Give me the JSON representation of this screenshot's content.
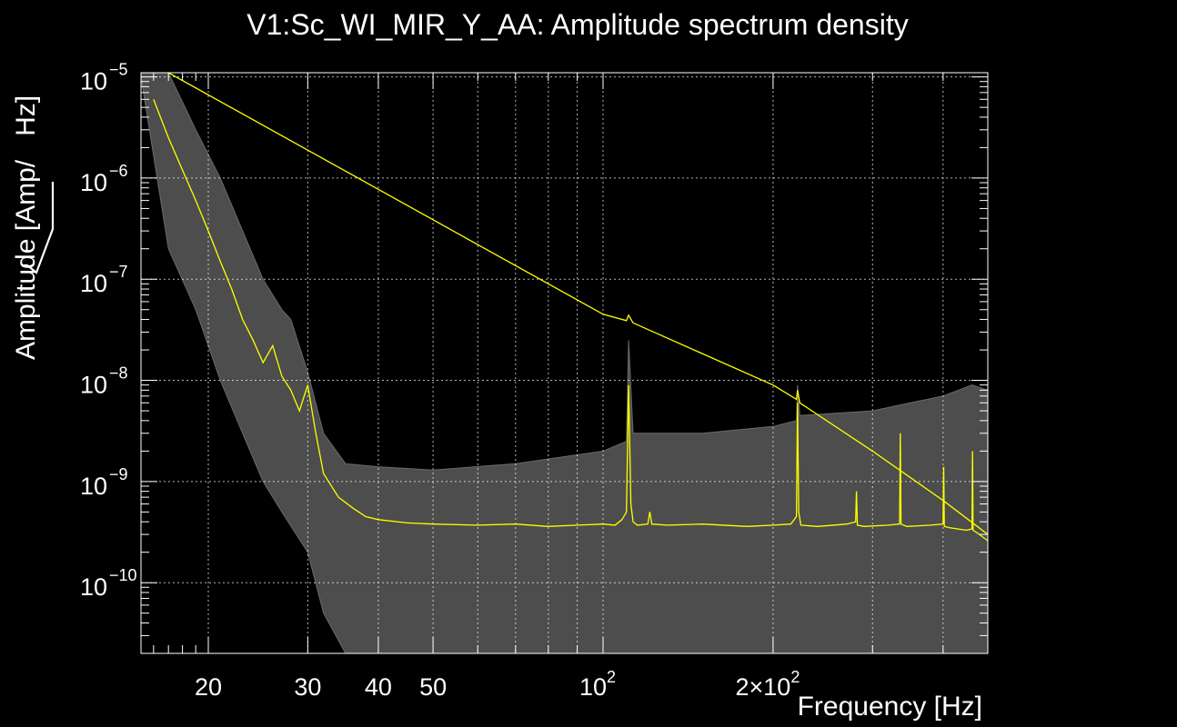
{
  "chart_data": {
    "type": "line",
    "title": "V1:Sc_WI_MIR_Y_AA: Amplitude spectrum density",
    "xlabel": "Frequency [Hz]",
    "ylabel_prefix": "Amplitude [Amp/",
    "ylabel_radicand": "Hz",
    "ylabel_suffix": "]",
    "xscale": "log",
    "yscale": "log",
    "xlim": [
      15.2,
      480
    ],
    "ylim": [
      2e-11,
      1.1e-05
    ],
    "grid": true,
    "background": "#000000",
    "x_ticks": [
      {
        "value": 20,
        "label": "20"
      },
      {
        "value": 30,
        "label": "30"
      },
      {
        "value": 40,
        "label": "40"
      },
      {
        "value": 50,
        "label": "50"
      },
      {
        "value": 100,
        "label": "10",
        "exp": "2"
      },
      {
        "value": 200,
        "label": "2×10",
        "exp": "2"
      }
    ],
    "y_ticks": [
      {
        "value": 1e-05,
        "base": "10",
        "exp": "−5"
      },
      {
        "value": 1e-06,
        "base": "10",
        "exp": "−6"
      },
      {
        "value": 1e-07,
        "base": "10",
        "exp": "−7"
      },
      {
        "value": 1e-08,
        "base": "10",
        "exp": "−8"
      },
      {
        "value": 1e-09,
        "base": "10",
        "exp": "−9"
      },
      {
        "value": 1e-10,
        "base": "10",
        "exp": "−10"
      }
    ],
    "series": [
      {
        "role": "noise-band-upper",
        "color": "#4d4d4d",
        "x": [
          15.2,
          17,
          19,
          21,
          23,
          25,
          27,
          28,
          30,
          32,
          35,
          40,
          50,
          70,
          100,
          110,
          111,
          113,
          150,
          200,
          220,
          221,
          223,
          300,
          350,
          400,
          450,
          480
        ],
        "y": [
          1.1e-05,
          1.1e-05,
          3e-06,
          1e-06,
          3e-07,
          1e-07,
          5e-08,
          4e-08,
          1.2e-08,
          3e-09,
          1.5e-09,
          1.4e-09,
          1.3e-09,
          1.5e-09,
          2e-09,
          2.5e-09,
          2.5e-08,
          3e-09,
          3e-09,
          3.5e-09,
          4e-09,
          9e-09,
          4.5e-09,
          5e-09,
          6e-09,
          7e-09,
          9e-09,
          8e-09
        ]
      },
      {
        "role": "noise-band-lower",
        "color": "#4d4d4d",
        "x": [
          15.2,
          17,
          19,
          21,
          23,
          25,
          27,
          30,
          32,
          35,
          40,
          60,
          100,
          200,
          300,
          400,
          480
        ],
        "y": [
          1e-05,
          2e-07,
          5e-08,
          1e-08,
          3e-09,
          1e-09,
          5e-10,
          2e-10,
          5e-11,
          2e-11,
          2e-11,
          2e-11,
          2e-11,
          2e-11,
          2e-11,
          2e-11,
          2e-11
        ]
      },
      {
        "role": "median",
        "color": "#ffff00",
        "x": [
          16,
          17,
          18,
          19,
          20,
          21,
          22,
          23,
          24,
          25,
          26,
          27,
          28,
          29,
          30,
          31,
          32,
          34,
          36,
          38,
          40,
          45,
          50,
          60,
          70,
          80,
          90,
          100,
          105,
          108,
          110,
          111,
          112,
          113,
          115,
          120,
          121,
          122,
          130,
          150,
          180,
          200,
          215,
          220,
          221,
          222,
          224,
          240,
          270,
          280,
          281,
          282,
          290,
          320,
          335,
          336,
          337,
          345,
          380,
          400,
          401,
          402,
          410,
          440,
          450,
          451,
          452,
          460,
          480
        ],
        "y": [
          6e-06,
          2.5e-06,
          1.2e-06,
          6e-07,
          3e-07,
          1.5e-07,
          8e-08,
          4e-08,
          2.5e-08,
          1.5e-08,
          2.2e-08,
          1.1e-08,
          8e-09,
          5e-09,
          9e-09,
          3e-09,
          1.2e-09,
          7e-10,
          5.5e-10,
          4.5e-10,
          4.2e-10,
          3.9e-10,
          3.8e-10,
          3.7e-10,
          3.8e-10,
          3.6e-10,
          3.7e-10,
          3.8e-10,
          3.7e-10,
          4.2e-10,
          5e-10,
          9e-09,
          6e-10,
          4e-10,
          3.7e-10,
          3.8e-10,
          5e-10,
          3.8e-10,
          3.7e-10,
          3.8e-10,
          3.6e-10,
          3.7e-10,
          3.8e-10,
          4.5e-10,
          6e-09,
          5e-10,
          3.7e-10,
          3.6e-10,
          3.8e-10,
          4e-10,
          8e-10,
          3.7e-10,
          3.6e-10,
          3.7e-10,
          3.8e-10,
          3e-09,
          3.8e-10,
          3.6e-10,
          3.7e-10,
          3.8e-10,
          1.4e-09,
          3.6e-10,
          3.5e-10,
          3.3e-10,
          3.4e-10,
          2e-09,
          3.3e-10,
          3.1e-10,
          2.6e-10
        ]
      },
      {
        "role": "reference-1-over-f",
        "color": "#ffff00",
        "x": [
          17,
          100,
          110,
          111,
          113,
          200,
          220,
          221,
          223,
          300,
          400,
          480
        ],
        "y": [
          1.1e-05,
          4.5e-08,
          3.9e-08,
          4.4e-08,
          3.7e-08,
          9e-09,
          6.5e-09,
          8e-09,
          6e-09,
          2e-09,
          6.5e-10,
          3e-10
        ]
      }
    ]
  }
}
